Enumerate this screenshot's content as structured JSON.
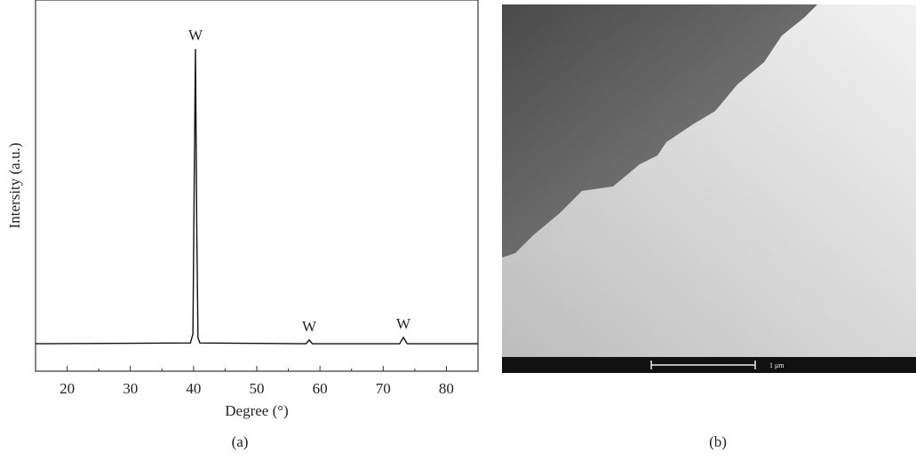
{
  "chart_data": {
    "type": "line",
    "x_label": "Degree (°)",
    "y_label": "Intersity (a.u.)",
    "x": [
      15,
      39.5,
      39.9,
      40.1,
      40.3,
      40.5,
      40.7,
      41,
      57.8,
      58.3,
      58.8,
      72.6,
      73.2,
      73.8,
      85
    ],
    "series": [
      {
        "color": "#111111",
        "values": [
          7.4,
          7.6,
          10,
          50,
          86.8,
          40,
          9,
          7.6,
          7.4,
          8.4,
          7.4,
          7.4,
          9.1,
          7.4,
          7.4
        ]
      }
    ],
    "annotations": [
      "W",
      "W",
      "W"
    ],
    "xlim": [
      15,
      85
    ],
    "xticks": [
      20,
      30,
      40,
      50,
      60,
      70,
      80
    ],
    "ylim": [
      0,
      100
    ]
  },
  "panel_labels": [
    "(a)",
    "(b)"
  ],
  "image": {
    "scale_label": "1 μm"
  }
}
